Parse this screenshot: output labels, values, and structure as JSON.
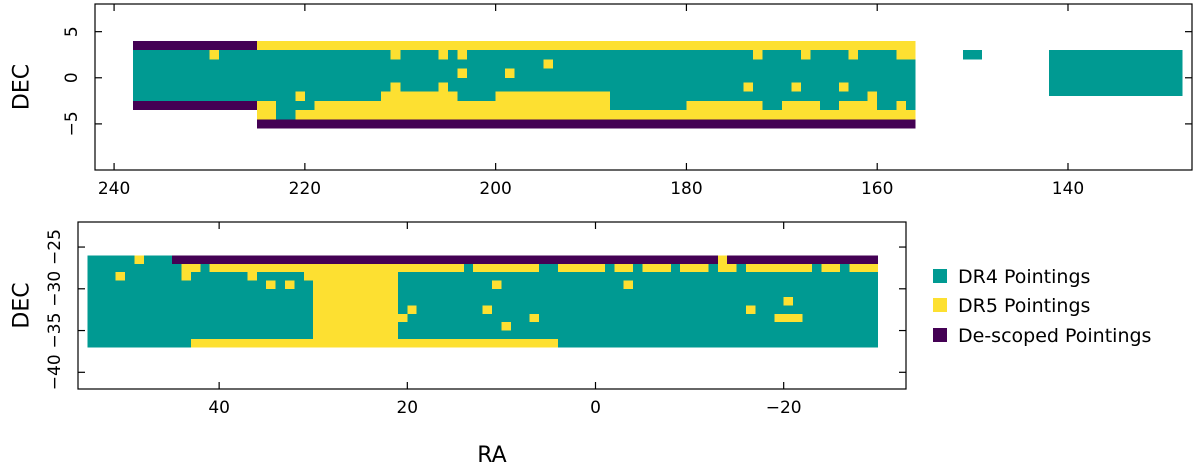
{
  "figure": {
    "legend": {
      "placement": "right of bottom panel",
      "entries": [
        {
          "key": "dr4",
          "label": "DR4 Pointings",
          "color": "#009a92"
        },
        {
          "key": "dr5",
          "label": "DR5 Pointings",
          "color": "#fde031"
        },
        {
          "key": "descoped",
          "label": "De-scoped Pointings",
          "color": "#440154"
        }
      ]
    }
  },
  "chart_data": [
    {
      "type": "heatmap",
      "xlabel": "",
      "ylabel": "DEC",
      "xlim": [
        242,
        127
      ],
      "ylim": [
        -10,
        8
      ],
      "xticks": [
        240,
        220,
        200,
        180,
        160,
        140
      ],
      "yticks": [
        5,
        0,
        -5
      ],
      "ytick_labels": [
        "5",
        "0",
        "−5"
      ],
      "grid": false,
      "rects": [
        {
          "ra": [
            238,
            225
          ],
          "dec": [
            3,
            4
          ],
          "cat": "descoped"
        },
        {
          "ra": [
            238,
            225
          ],
          "dec": [
            -3.5,
            -2.5
          ],
          "cat": "descoped"
        },
        {
          "ra": [
            225,
            156
          ],
          "dec": [
            -5.5,
            -4.5
          ],
          "cat": "descoped"
        },
        {
          "ra": [
            225,
            156
          ],
          "dec": [
            -4.5,
            4
          ],
          "cat": "dr5"
        },
        {
          "ra": [
            238,
            225
          ],
          "dec": [
            -2.5,
            3
          ],
          "cat": "dr4"
        },
        {
          "ra": [
            225,
            188
          ],
          "dec": [
            -1.5,
            2
          ],
          "cat": "dr4"
        },
        {
          "ra": [
            188,
            156
          ],
          "dec": [
            -2.5,
            2
          ],
          "cat": "dr4"
        },
        {
          "ra": [
            225,
            158
          ],
          "dec": [
            2,
            3
          ],
          "cat": "dr4"
        },
        {
          "ra": [
            225,
            212
          ],
          "dec": [
            -2.5,
            -1.5
          ],
          "cat": "dr4"
        },
        {
          "ra": [
            223,
            221
          ],
          "dec": [
            -4.5,
            -2.5
          ],
          "cat": "dr4"
        },
        {
          "ra": [
            221,
            219
          ],
          "dec": [
            -3.5,
            -2.5
          ],
          "cat": "dr4"
        },
        {
          "ra": [
            204,
            200
          ],
          "dec": [
            -2.5,
            -1.5
          ],
          "cat": "dr4"
        },
        {
          "ra": [
            188,
            180
          ],
          "dec": [
            -3.5,
            -2.5
          ],
          "cat": "dr4"
        },
        {
          "ra": [
            172,
            170
          ],
          "dec": [
            -3.5,
            -2.5
          ],
          "cat": "dr4"
        },
        {
          "ra": [
            166,
            164
          ],
          "dec": [
            -3.5,
            -2.5
          ],
          "cat": "dr4"
        },
        {
          "ra": [
            160,
            158
          ],
          "dec": [
            -3.5,
            -2.5
          ],
          "cat": "dr4"
        },
        {
          "ra": [
            157,
            156
          ],
          "dec": [
            -3.5,
            -1.5
          ],
          "cat": "dr4"
        },
        {
          "ra": [
            151,
            149
          ],
          "dec": [
            2,
            3
          ],
          "cat": "dr4"
        },
        {
          "ra": [
            142,
            128
          ],
          "dec": [
            -2,
            3
          ],
          "cat": "dr4"
        },
        {
          "ra": [
            230,
            229
          ],
          "dec": [
            2,
            3
          ],
          "cat": "dr5"
        },
        {
          "ra": [
            221,
            220
          ],
          "dec": [
            -2.5,
            -1.5
          ],
          "cat": "dr5"
        },
        {
          "ra": [
            211,
            210
          ],
          "dec": [
            2,
            3
          ],
          "cat": "dr5"
        },
        {
          "ra": [
            211,
            210
          ],
          "dec": [
            -1.5,
            -0.5
          ],
          "cat": "dr5"
        },
        {
          "ra": [
            206,
            205
          ],
          "dec": [
            2,
            3
          ],
          "cat": "dr5"
        },
        {
          "ra": [
            206,
            205
          ],
          "dec": [
            -1.5,
            -0.5
          ],
          "cat": "dr5"
        },
        {
          "ra": [
            204,
            203
          ],
          "dec": [
            2,
            3
          ],
          "cat": "dr5"
        },
        {
          "ra": [
            204,
            203
          ],
          "dec": [
            0,
            1
          ],
          "cat": "dr5"
        },
        {
          "ra": [
            199,
            198
          ],
          "dec": [
            0,
            1
          ],
          "cat": "dr5"
        },
        {
          "ra": [
            195,
            194
          ],
          "dec": [
            1,
            2
          ],
          "cat": "dr5"
        },
        {
          "ra": [
            173,
            172
          ],
          "dec": [
            2,
            3
          ],
          "cat": "dr5"
        },
        {
          "ra": [
            174,
            173
          ],
          "dec": [
            -1.5,
            -0.5
          ],
          "cat": "dr5"
        },
        {
          "ra": [
            168,
            167
          ],
          "dec": [
            2,
            3
          ],
          "cat": "dr5"
        },
        {
          "ra": [
            169,
            168
          ],
          "dec": [
            -1.5,
            -0.5
          ],
          "cat": "dr5"
        },
        {
          "ra": [
            163,
            162
          ],
          "dec": [
            2,
            3
          ],
          "cat": "dr5"
        },
        {
          "ra": [
            164,
            163
          ],
          "dec": [
            -1.5,
            -0.5
          ],
          "cat": "dr5"
        },
        {
          "ra": [
            161,
            160
          ],
          "dec": [
            -2.5,
            -1.5
          ],
          "cat": "dr5"
        }
      ]
    },
    {
      "type": "heatmap",
      "xlabel": "RA",
      "ylabel": "DEC",
      "xlim": [
        55,
        -33
      ],
      "ylim": [
        -42,
        -22
      ],
      "xticks": [
        40,
        20,
        0,
        -20
      ],
      "xtick_labels": [
        "40",
        "20",
        "0",
        "−20"
      ],
      "yticks": [
        -25,
        -30,
        -35,
        -40
      ],
      "ytick_labels": [
        "−25",
        "−30",
        "−35",
        "−40"
      ],
      "grid": false,
      "rects": [
        {
          "ra": [
            45,
            -30
          ],
          "dec": [
            -27,
            -26
          ],
          "cat": "descoped"
        },
        {
          "ra": [
            45,
            -30
          ],
          "dec": [
            -28,
            -27
          ],
          "cat": "dr5"
        },
        {
          "ra": [
            54,
            45
          ],
          "dec": [
            -28,
            -26
          ],
          "cat": "dr4"
        },
        {
          "ra": [
            54,
            -30
          ],
          "dec": [
            -36,
            -28
          ],
          "cat": "dr4"
        },
        {
          "ra": [
            30,
            21
          ],
          "dec": [
            -36,
            -28
          ],
          "cat": "dr5"
        },
        {
          "ra": [
            43,
            4
          ],
          "dec": [
            -37,
            -36
          ],
          "cat": "dr5"
        },
        {
          "ra": [
            54,
            43
          ],
          "dec": [
            -37,
            -36
          ],
          "cat": "dr4"
        },
        {
          "ra": [
            4,
            -30
          ],
          "dec": [
            -37,
            -36
          ],
          "cat": "dr4"
        },
        {
          "ra": [
            30,
            26
          ],
          "dec": [
            -36,
            -31
          ],
          "cat": "dr5"
        },
        {
          "ra": [
            49,
            48
          ],
          "dec": [
            -27,
            -26
          ],
          "cat": "dr5"
        },
        {
          "ra": [
            51,
            50
          ],
          "dec": [
            -29,
            -28
          ],
          "cat": "dr5"
        },
        {
          "ra": [
            45,
            44
          ],
          "dec": [
            -28,
            -27
          ],
          "cat": "dr4"
        },
        {
          "ra": [
            44,
            43
          ],
          "dec": [
            -29,
            -28
          ],
          "cat": "dr5"
        },
        {
          "ra": [
            42,
            41
          ],
          "dec": [
            -28,
            -27
          ],
          "cat": "dr4"
        },
        {
          "ra": [
            37,
            36
          ],
          "dec": [
            -29,
            -28
          ],
          "cat": "dr5"
        },
        {
          "ra": [
            35,
            34
          ],
          "dec": [
            -30,
            -29
          ],
          "cat": "dr5"
        },
        {
          "ra": [
            31,
            30
          ],
          "dec": [
            -29,
            -28
          ],
          "cat": "dr5"
        },
        {
          "ra": [
            33,
            32
          ],
          "dec": [
            -30,
            -29
          ],
          "cat": "dr5"
        },
        {
          "ra": [
            21,
            20
          ],
          "dec": [
            -34,
            -33
          ],
          "cat": "dr5"
        },
        {
          "ra": [
            20,
            19
          ],
          "dec": [
            -33,
            -32
          ],
          "cat": "dr5"
        },
        {
          "ra": [
            14,
            13
          ],
          "dec": [
            -28,
            -27
          ],
          "cat": "dr4"
        },
        {
          "ra": [
            11,
            10
          ],
          "dec": [
            -30,
            -29
          ],
          "cat": "dr5"
        },
        {
          "ra": [
            12,
            11
          ],
          "dec": [
            -33,
            -32
          ],
          "cat": "dr5"
        },
        {
          "ra": [
            10,
            9
          ],
          "dec": [
            -35,
            -34
          ],
          "cat": "dr5"
        },
        {
          "ra": [
            7,
            6
          ],
          "dec": [
            -34,
            -33
          ],
          "cat": "dr5"
        },
        {
          "ra": [
            6,
            4
          ],
          "dec": [
            -28,
            -27
          ],
          "cat": "dr4"
        },
        {
          "ra": [
            -1,
            -2
          ],
          "dec": [
            -28,
            -27
          ],
          "cat": "dr4"
        },
        {
          "ra": [
            -3,
            -4
          ],
          "dec": [
            -30,
            -29
          ],
          "cat": "dr5"
        },
        {
          "ra": [
            -4,
            -5
          ],
          "dec": [
            -28,
            -27
          ],
          "cat": "dr4"
        },
        {
          "ra": [
            -8,
            -9
          ],
          "dec": [
            -28,
            -27
          ],
          "cat": "dr4"
        },
        {
          "ra": [
            -12,
            -13
          ],
          "dec": [
            -28,
            -27
          ],
          "cat": "dr4"
        },
        {
          "ra": [
            -13,
            -14
          ],
          "dec": [
            -27,
            -26
          ],
          "cat": "dr5"
        },
        {
          "ra": [
            -15,
            -16
          ],
          "dec": [
            -28,
            -27
          ],
          "cat": "dr4"
        },
        {
          "ra": [
            -16,
            -17
          ],
          "dec": [
            -33,
            -32
          ],
          "cat": "dr5"
        },
        {
          "ra": [
            -19,
            -22
          ],
          "dec": [
            -34,
            -33
          ],
          "cat": "dr5"
        },
        {
          "ra": [
            -20,
            -21
          ],
          "dec": [
            -32,
            -31
          ],
          "cat": "dr5"
        },
        {
          "ra": [
            -23,
            -24
          ],
          "dec": [
            -28,
            -27
          ],
          "cat": "dr4"
        },
        {
          "ra": [
            -26,
            -27
          ],
          "dec": [
            -28,
            -27
          ],
          "cat": "dr4"
        }
      ]
    }
  ]
}
